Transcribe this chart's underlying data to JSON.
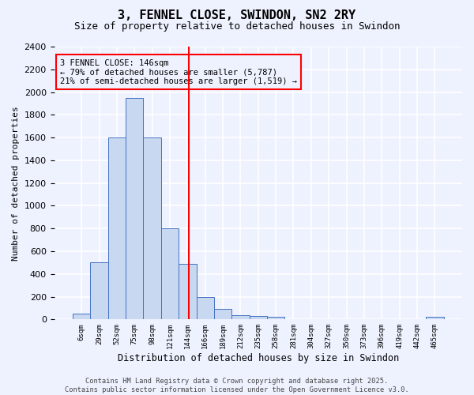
{
  "title": "3, FENNEL CLOSE, SWINDON, SN2 2RY",
  "subtitle": "Size of property relative to detached houses in Swindon",
  "xlabel": "Distribution of detached houses by size in Swindon",
  "ylabel": "Number of detached properties",
  "bin_labels": [
    "6sqm",
    "29sqm",
    "52sqm",
    "75sqm",
    "98sqm",
    "121sqm",
    "144sqm",
    "166sqm",
    "189sqm",
    "212sqm",
    "235sqm",
    "258sqm",
    "281sqm",
    "304sqm",
    "327sqm",
    "350sqm",
    "373sqm",
    "396sqm",
    "419sqm",
    "442sqm",
    "465sqm"
  ],
  "bar_heights": [
    50,
    500,
    1600,
    1950,
    1600,
    800,
    490,
    200,
    90,
    40,
    30,
    20,
    0,
    0,
    0,
    0,
    0,
    0,
    0,
    0,
    20
  ],
  "bar_color": "#c8d8f0",
  "bar_edge_color": "#4472c4",
  "vline_color": "red",
  "vline_pos": 6.08,
  "ylim": [
    0,
    2400
  ],
  "yticks": [
    0,
    200,
    400,
    600,
    800,
    1000,
    1200,
    1400,
    1600,
    1800,
    2000,
    2200,
    2400
  ],
  "annotation_text": "3 FENNEL CLOSE: 146sqm\n← 79% of detached houses are smaller (5,787)\n21% of semi-detached houses are larger (1,519) →",
  "annotation_box_color": "red",
  "footer_text": "Contains HM Land Registry data © Crown copyright and database right 2025.\nContains public sector information licensed under the Open Government Licence v3.0.",
  "background_color": "#eef2ff",
  "grid_color": "white"
}
